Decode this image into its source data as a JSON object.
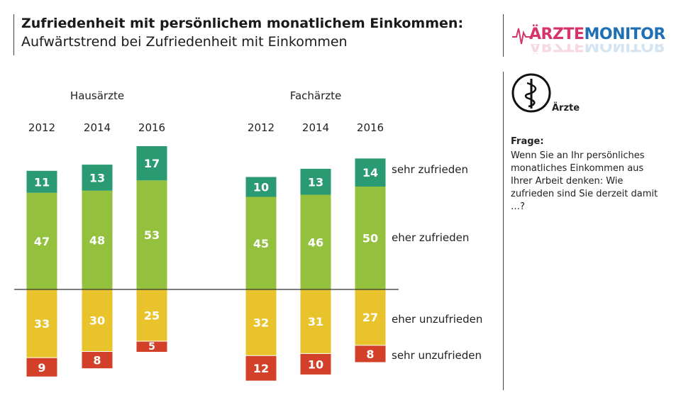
{
  "header": {
    "title": "Zufriedenheit mit persönlichem monatlichem Einkommen:",
    "subtitle": "Aufwärtstrend bei Zufriedenheit mit Einkommen"
  },
  "logo": {
    "part1": "ÄRZTE",
    "part2": "MONITOR"
  },
  "side_panel": {
    "badge_label": "Ärzte",
    "question_title": "Frage:",
    "question_text": "Wenn Sie an Ihr persönliches monatliches Einkommen aus Ihrer Arbeit denken: Wie zufrieden sind Sie derzeit damit …?"
  },
  "colors": {
    "sehr_zufrieden": "#2a9a72",
    "eher_zufrieden": "#93c13e",
    "eher_unzufrieden": "#e8c32c",
    "sehr_unzufrieden": "#d2402a",
    "text_dark": "#222222"
  },
  "chart_data": {
    "type": "bar",
    "subtype": "diverging-stacked",
    "title": "Zufriedenheit mit persönlichem monatlichem Einkommen:",
    "subtitle": "Aufwärtstrend bei Zufriedenheit mit Einkommen",
    "groups": [
      {
        "name": "Hausärzte",
        "years": [
          "2012",
          "2014",
          "2016"
        ],
        "series": [
          {
            "name": "sehr zufrieden",
            "values": [
              11,
              13,
              17
            ]
          },
          {
            "name": "eher zufrieden",
            "values": [
              47,
              48,
              53
            ]
          },
          {
            "name": "eher unzufrieden",
            "values": [
              33,
              30,
              25
            ]
          },
          {
            "name": "sehr unzufrieden",
            "values": [
              9,
              8,
              5
            ]
          }
        ]
      },
      {
        "name": "Fachärzte",
        "years": [
          "2012",
          "2014",
          "2016"
        ],
        "series": [
          {
            "name": "sehr zufrieden",
            "values": [
              10,
              13,
              14
            ]
          },
          {
            "name": "eher zufrieden",
            "values": [
              45,
              46,
              50
            ]
          },
          {
            "name": "eher unzufrieden",
            "values": [
              32,
              31,
              27
            ]
          },
          {
            "name": "sehr unzufrieden",
            "values": [
              12,
              10,
              8
            ]
          }
        ]
      }
    ],
    "legend": [
      "sehr zufrieden",
      "eher zufrieden",
      "eher unzufrieden",
      "sehr unzufrieden"
    ],
    "legend_position": "right",
    "baseline": "zero line between positive and negative categories"
  }
}
